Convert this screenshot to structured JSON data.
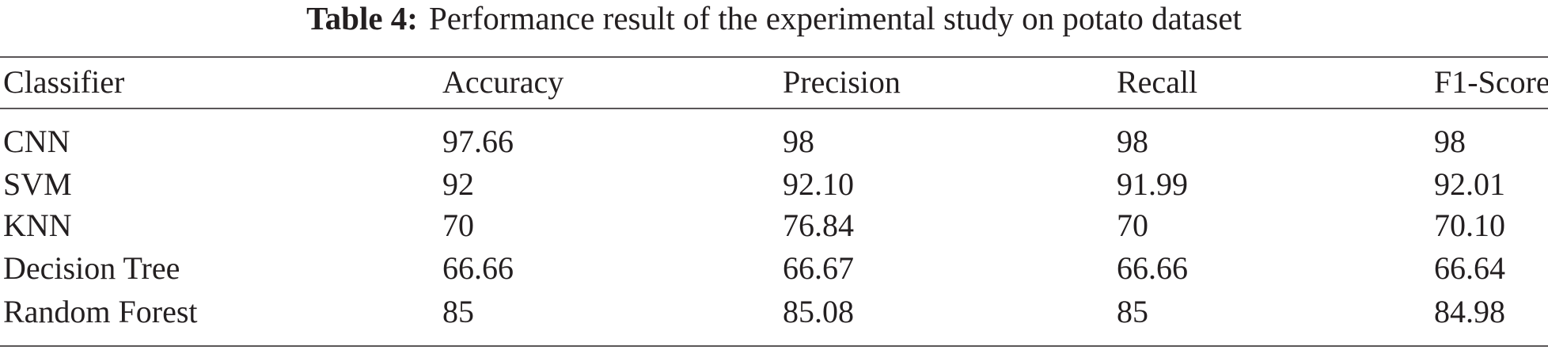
{
  "caption": {
    "label": "Table 4:",
    "text": "Performance result of the experimental study on potato dataset"
  },
  "table": {
    "header": [
      "Classifier",
      "Accuracy",
      "Precision",
      "Recall",
      "F1-Score"
    ],
    "rows": [
      [
        "CNN",
        "97.66",
        "98",
        "98",
        "98"
      ],
      [
        "SVM",
        "92",
        "92.10",
        "91.99",
        "92.01"
      ],
      [
        "KNN",
        "70",
        "76.84",
        "70",
        "70.10"
      ],
      [
        "Decision Tree",
        "66.66",
        "66.67",
        "66.66",
        "66.64"
      ],
      [
        "Random Forest",
        "85",
        "85.08",
        "85",
        "84.98"
      ]
    ]
  }
}
